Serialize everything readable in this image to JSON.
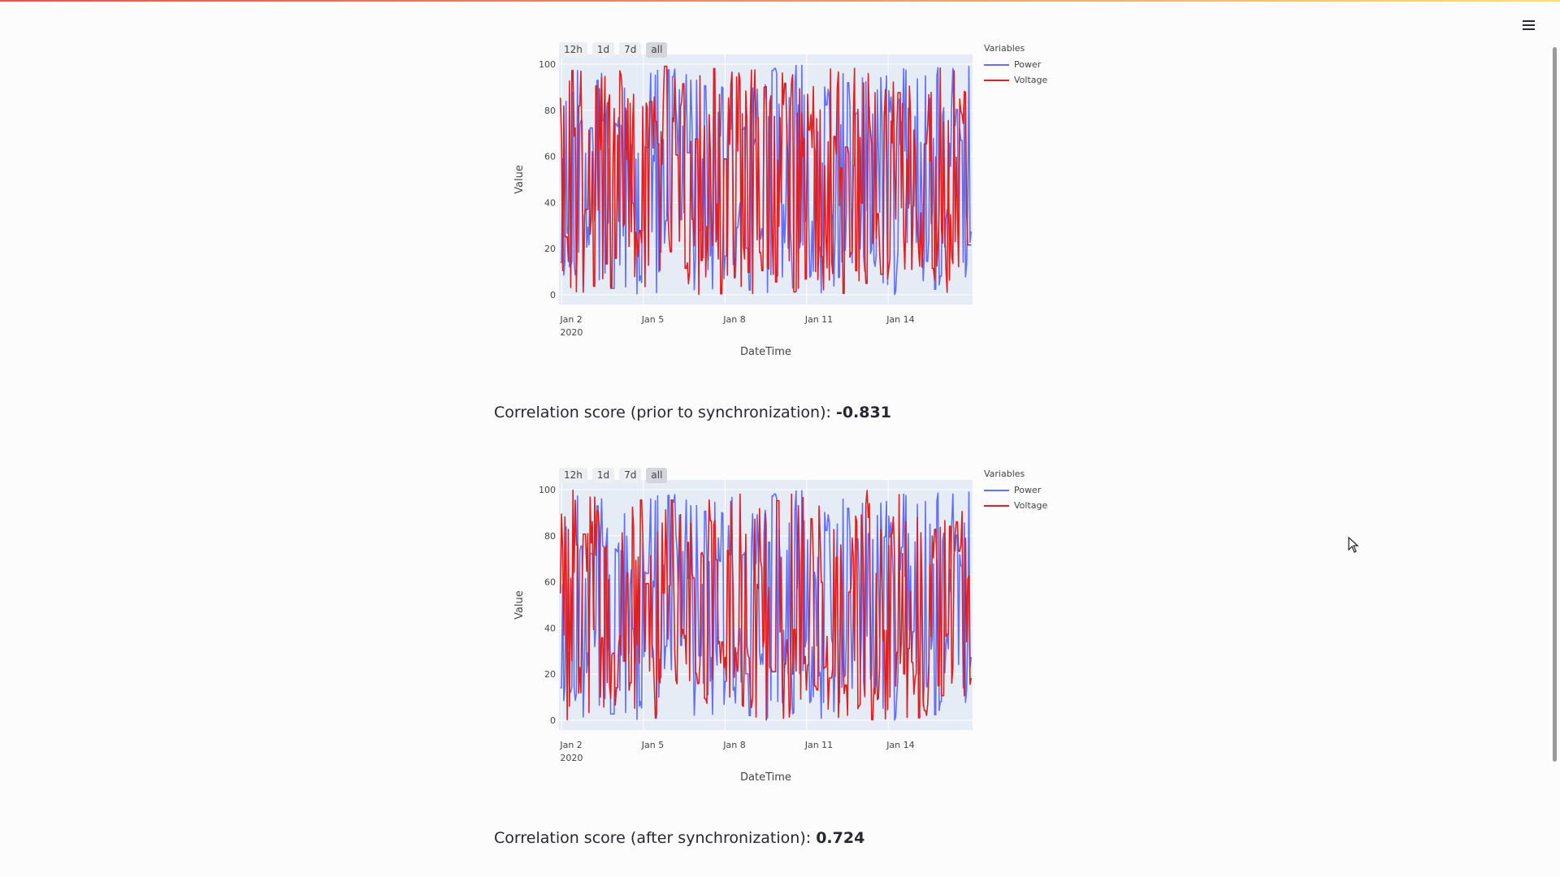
{
  "page": {
    "menu_icon": "hamburger-menu-icon",
    "accent_gradient": [
      "#ff4b4b",
      "#ff8c5a",
      "#ffe45a"
    ]
  },
  "charts": [
    {
      "range_buttons": [
        "12h",
        "1d",
        "7d",
        "all"
      ],
      "active_range": "all",
      "legend": {
        "title": "Variables",
        "items": [
          {
            "name": "Power",
            "color": "#636efa"
          },
          {
            "name": "Voltage",
            "color": "#e02020"
          }
        ]
      },
      "score": {
        "label": "Correlation score (prior to synchronization): ",
        "value": "-0.831"
      }
    },
    {
      "range_buttons": [
        "12h",
        "1d",
        "7d",
        "all"
      ],
      "active_range": "all",
      "legend": {
        "title": "Variables",
        "items": [
          {
            "name": "Power",
            "color": "#636efa"
          },
          {
            "name": "Voltage",
            "color": "#e02020"
          }
        ]
      },
      "score": {
        "label": "Correlation score (after synchronization): ",
        "value": "0.724"
      }
    }
  ],
  "chart_data": [
    {
      "type": "line",
      "title": "",
      "xlabel": "DateTime",
      "ylabel": "Value",
      "ylim": [
        0,
        100
      ],
      "yticks": [
        "0",
        "20",
        "40",
        "60",
        "80",
        "100"
      ],
      "xticks": [
        "Jan 2",
        "Jan 5",
        "Jan 8",
        "Jan 11",
        "Jan 14"
      ],
      "xtick_year": "2020",
      "xrange_days": [
        1.9,
        17.1
      ],
      "xtick_days": [
        2,
        5,
        8,
        11,
        14
      ],
      "series": [
        {
          "name": "Power",
          "color": "#636efa",
          "seed": 11
        },
        {
          "name": "Voltage",
          "color": "#e02020",
          "seed": 29
        }
      ]
    },
    {
      "type": "line",
      "title": "",
      "xlabel": "DateTime",
      "ylabel": "Value",
      "ylim": [
        0,
        100
      ],
      "yticks": [
        "0",
        "20",
        "40",
        "60",
        "80",
        "100"
      ],
      "xticks": [
        "Jan 2",
        "Jan 5",
        "Jan 8",
        "Jan 11",
        "Jan 14"
      ],
      "xtick_year": "2020",
      "xrange_days": [
        1.9,
        17.1
      ],
      "xtick_days": [
        2,
        5,
        8,
        11,
        14
      ],
      "series": [
        {
          "name": "Power",
          "color": "#636efa",
          "seed": 11
        },
        {
          "name": "Voltage",
          "color": "#e02020",
          "seed": 47
        }
      ]
    }
  ]
}
